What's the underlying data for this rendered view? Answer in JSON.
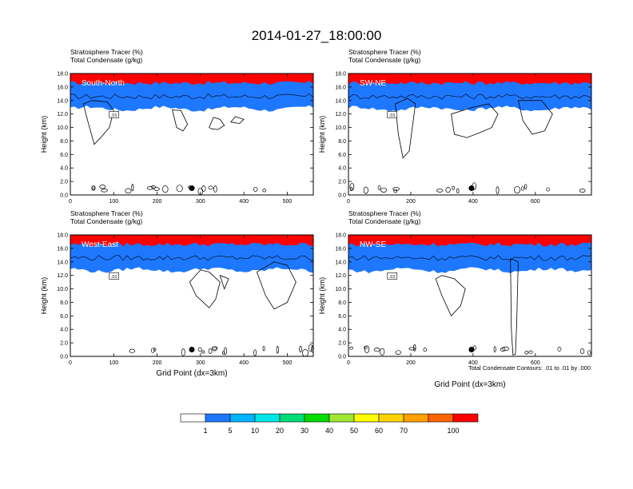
{
  "title": "2014-01-27_18:00:00",
  "chart_data": [
    {
      "type": "heatmap",
      "header": [
        "Stratosphere Tracer   (%)",
        "Total Condensate   (g/kg)"
      ],
      "label": "South-North",
      "ylabel": "Height (km)",
      "xlabel": "",
      "xlim": [
        0,
        560
      ],
      "xticks": [
        "0",
        "100",
        "200",
        "300",
        "400",
        "500"
      ],
      "ylim": [
        0,
        18
      ],
      "yticks": [
        "0.0",
        "2.0",
        "4.0",
        "6.0",
        "8.0",
        "10.0",
        "12.0",
        "14.0",
        "16.0",
        "18.0"
      ],
      "contour_label": ".01",
      "marker": {
        "x": 280,
        "y": 1.0
      }
    },
    {
      "type": "heatmap",
      "header": [
        "Stratosphere Tracer   (%)",
        "Total Condensate   (g/kg)"
      ],
      "label": "SW-NE",
      "ylabel": "Height (km)",
      "xlabel": "",
      "xlim": [
        0,
        780
      ],
      "xticks": [
        "0",
        "200",
        "400",
        "600"
      ],
      "ylim": [
        0,
        18
      ],
      "yticks": [
        "0.0",
        "2.0",
        "4.0",
        "6.0",
        "8.0",
        "10.0",
        "12.0",
        "14.0",
        "16.0",
        "18.0"
      ],
      "contour_label": ".01",
      "marker": {
        "x": 395,
        "y": 1.0
      }
    },
    {
      "type": "heatmap",
      "header": [
        "Stratosphere Tracer   (%)",
        "Total Condensate   (g/kg)"
      ],
      "label": "West-East",
      "ylabel": "Height (km)",
      "xlabel": "Grid Point (dx=3km)",
      "xlim": [
        0,
        560
      ],
      "xticks": [
        "0",
        "100",
        "200",
        "300",
        "400",
        "500"
      ],
      "ylim": [
        0,
        18
      ],
      "yticks": [
        "0.0",
        "2.0",
        "4.0",
        "6.0",
        "8.0",
        "10.0",
        "12.0",
        "14.0",
        "16.0",
        "18.0"
      ],
      "contour_label": ".01",
      "marker": {
        "x": 280,
        "y": 1.0
      }
    },
    {
      "type": "heatmap",
      "header": [
        "Stratosphere Tracer   (%)",
        "Total Condensate   (g/kg)"
      ],
      "label": "NW-SE",
      "ylabel": "Height (km)",
      "xlabel": "Grid Point (dx=3km)",
      "xlim": [
        0,
        780
      ],
      "xticks": [
        "0",
        "200",
        "400",
        "600"
      ],
      "ylim": [
        0,
        18
      ],
      "yticks": [
        "0.0",
        "2.0",
        "4.0",
        "6.0",
        "8.0",
        "10.0",
        "12.0",
        "14.0",
        "16.0",
        "18.0"
      ],
      "contour_label": ".01",
      "marker": {
        "x": 395,
        "y": 1.0
      }
    }
  ],
  "contour_note": "Total Condensate Contours: .01 to .01 by .000",
  "colorbar": {
    "colors": [
      "#ffffff",
      "#1e78ff",
      "#00b4ff",
      "#00e6e6",
      "#00dc78",
      "#00dc00",
      "#a0e632",
      "#ffff00",
      "#ffd200",
      "#ffa000",
      "#ff6400",
      "#ff0000"
    ],
    "labels": [
      "1",
      "5",
      "10",
      "20",
      "30",
      "40",
      "50",
      "60",
      "70",
      "100"
    ]
  }
}
